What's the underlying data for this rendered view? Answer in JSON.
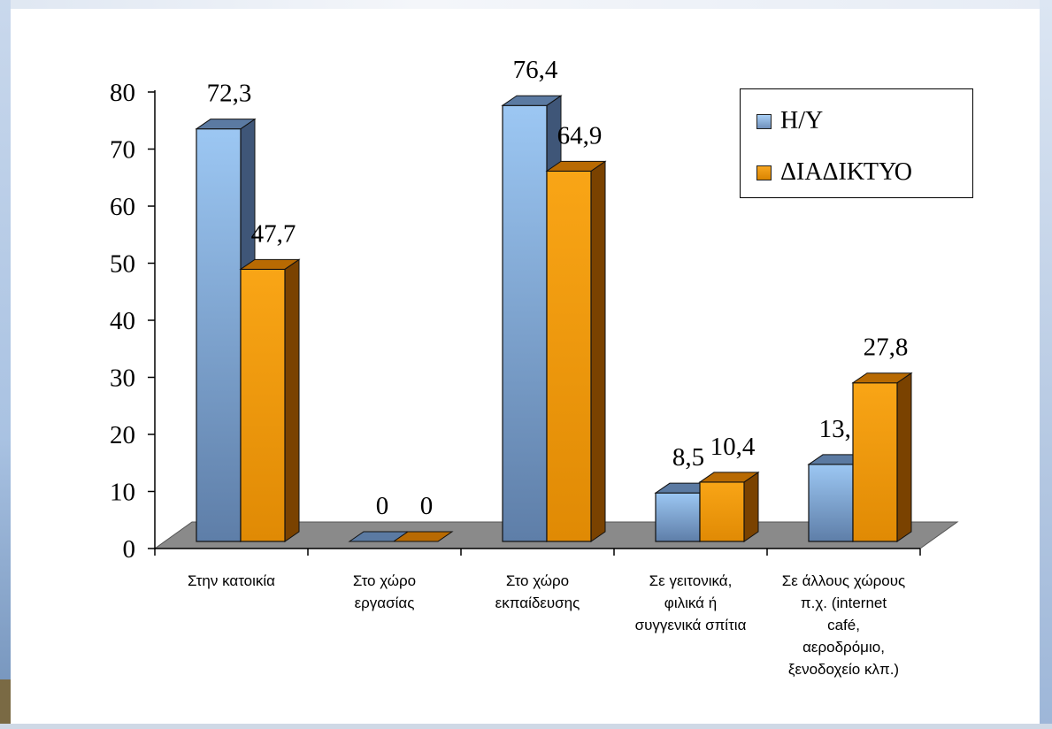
{
  "chart_data": {
    "type": "bar",
    "categories": [
      "Στην κατοικία",
      "Στο χώρο\nεργασίας",
      "Στο  χώρο\nεκπαίδευσης",
      "Σε γειτονικά,\nφιλικά ή\nσυγγενικά σπίτια",
      "Σε άλλους χώρους\nπ.χ.  (internet\ncafé,\nαεροδρόμιο,\nξενοδοχείο  κλπ.)"
    ],
    "series": [
      {
        "name": "Η/Υ",
        "values": [
          72.3,
          0,
          76.4,
          8.5,
          13.5
        ],
        "labels": [
          "72,3",
          "0",
          "76,4",
          "8,5",
          "13,5"
        ],
        "color": "#8fb6e6"
      },
      {
        "name": "ΔΙΑΔΙΚΤΥΟ",
        "values": [
          47.7,
          0,
          64.9,
          10.4,
          27.8
        ],
        "labels": [
          "47,7",
          "0",
          "64,9",
          "10,4",
          "27,8"
        ],
        "color": "#f39a0c"
      }
    ],
    "ylim": [
      0,
      80
    ],
    "yticks": [
      "0",
      "10",
      "20",
      "30",
      "40",
      "50",
      "60",
      "70",
      "80"
    ],
    "grid": false,
    "legend": "top-right",
    "style": "3d"
  }
}
